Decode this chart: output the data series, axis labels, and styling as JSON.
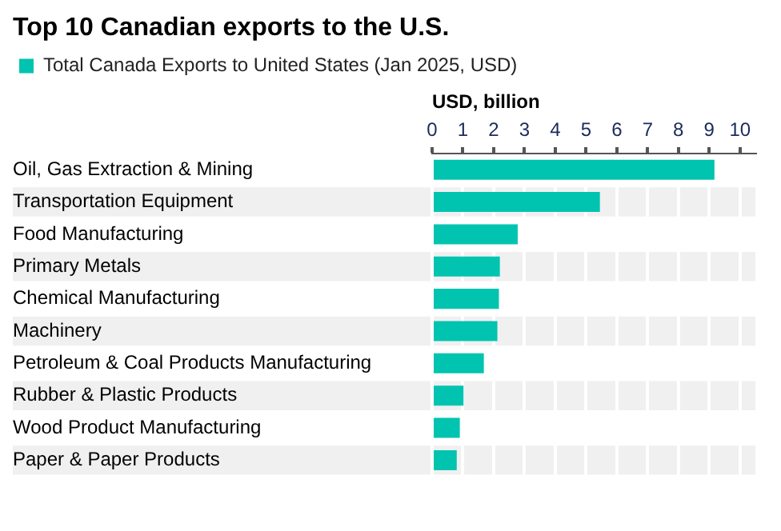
{
  "chart_data": {
    "type": "bar",
    "orientation": "horizontal",
    "title": "Top 10 Canadian exports to the U.S.",
    "xlabel": "USD, billion",
    "categories": [
      "Oil, Gas Extraction & Mining",
      "Transportation Equipment",
      "Food Manufacturing",
      "Primary Metals",
      "Chemical Manufacturing",
      "Machinery",
      "Petroleum & Coal Products Manufacturing",
      "Rubber & Plastic Products",
      "Wood Product Manufacturing",
      "Paper & Paper Products"
    ],
    "series": [
      {
        "name": "Total Canada Exports to United States (Jan 2025, USD)",
        "color": "#00c4b0",
        "values": [
          9.17,
          5.45,
          2.78,
          2.2,
          2.17,
          2.12,
          1.68,
          1.02,
          0.9,
          0.8
        ]
      }
    ],
    "xlim": [
      0,
      10.5
    ],
    "xticks": [
      0,
      1,
      2,
      3,
      4,
      5,
      6,
      7,
      8,
      9,
      10
    ],
    "grid": "x",
    "legend": "top left"
  }
}
